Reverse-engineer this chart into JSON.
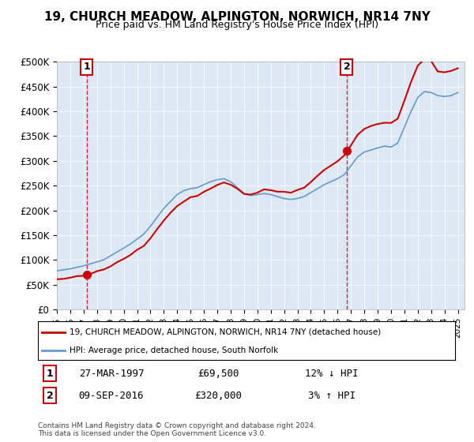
{
  "title": "19, CHURCH MEADOW, ALPINGTON, NORWICH, NR14 7NY",
  "subtitle": "Price paid vs. HM Land Registry's House Price Index (HPI)",
  "legend_line1": "19, CHURCH MEADOW, ALPINGTON, NORWICH, NR14 7NY (detached house)",
  "legend_line2": "HPI: Average price, detached house, South Norfolk",
  "annotation1_label": "1",
  "annotation1_date": "27-MAR-1997",
  "annotation1_price": "£69,500",
  "annotation1_hpi": "12% ↓ HPI",
  "annotation2_label": "2",
  "annotation2_date": "09-SEP-2016",
  "annotation2_price": "£320,000",
  "annotation2_hpi": "3% ↑ HPI",
  "footnote": "Contains HM Land Registry data © Crown copyright and database right 2024.\nThis data is licensed under the Open Government Licence v3.0.",
  "bg_color": "#dce9f5",
  "hpi_color": "#6699cc",
  "price_color": "#cc0000",
  "marker_color": "#cc0000",
  "vline_color": "#cc0000",
  "ylabel_values": [
    "£0",
    "£50K",
    "£100K",
    "£150K",
    "£200K",
    "£250K",
    "£300K",
    "£350K",
    "£400K",
    "£450K",
    "£500K"
  ],
  "ylim": [
    0,
    500000
  ],
  "xlim_start": 1995.0,
  "xlim_end": 2025.5,
  "sale1_x": 1997.23,
  "sale1_y": 69500,
  "sale2_x": 2016.69,
  "sale2_y": 320000
}
